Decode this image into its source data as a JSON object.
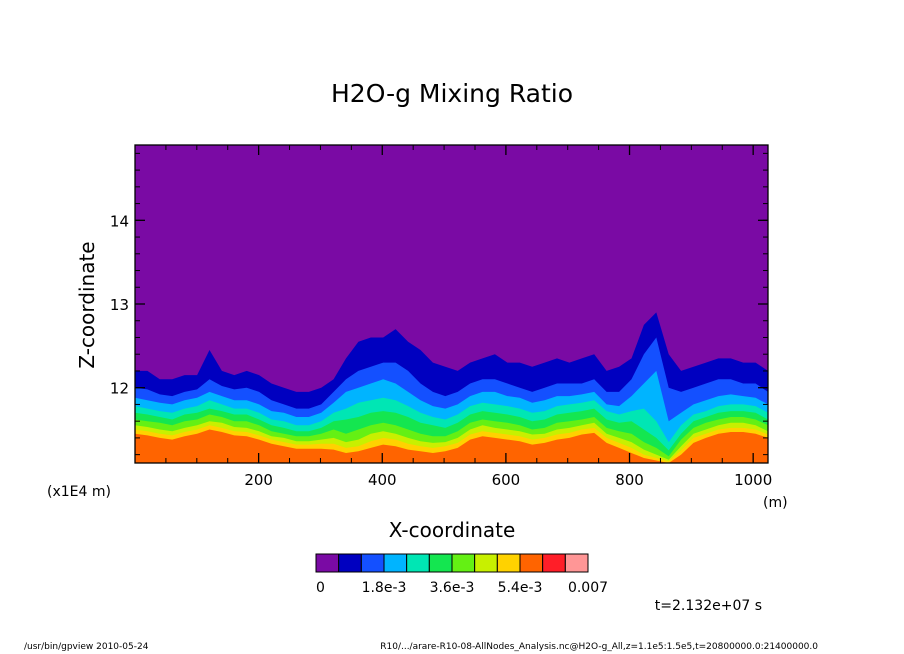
{
  "chart_data": {
    "type": "heatmap",
    "title": "H2O-g Mixing Ratio",
    "xlabel": "X-coordinate",
    "ylabel": "Z-coordinate",
    "x_unit": "(m)",
    "y_unit": "(x1E4 m)",
    "xlim": [
      0,
      1024
    ],
    "ylim": [
      11.1,
      14.9
    ],
    "x_ticks": [
      200,
      400,
      600,
      800,
      1000
    ],
    "y_ticks": [
      12,
      13,
      14
    ],
    "colorbar": {
      "colors": [
        "#7a0aa4",
        "#0000c0",
        "#1450ff",
        "#00b4ff",
        "#00e6b4",
        "#14e650",
        "#64f014",
        "#c8f000",
        "#ffd200",
        "#ff6400",
        "#ff1e28",
        "#ff9696"
      ],
      "tick_labels": [
        "0",
        "1.8e-3",
        "3.6e-3",
        "5.4e-3",
        "0.007"
      ]
    },
    "bands": [
      {
        "level": 0,
        "color": "#0000c0",
        "top": [
          12.2,
          12.2,
          12.1,
          12.1,
          12.15,
          12.15,
          12.45,
          12.2,
          12.15,
          12.2,
          12.15,
          12.05,
          12.0,
          11.95,
          11.95,
          12.0,
          12.1,
          12.35,
          12.55,
          12.6,
          12.6,
          12.7,
          12.55,
          12.45,
          12.3,
          12.25,
          12.2,
          12.3,
          12.35,
          12.4,
          12.3,
          12.3,
          12.25,
          12.3,
          12.35,
          12.3,
          12.35,
          12.4,
          12.2,
          12.25,
          12.35,
          12.75,
          12.9,
          12.4,
          12.2,
          12.25,
          12.3,
          12.35,
          12.35,
          12.3,
          12.3,
          12.2
        ]
      },
      {
        "level": 1,
        "color": "#1450ff",
        "top": [
          12.0,
          11.98,
          11.92,
          11.9,
          11.95,
          11.98,
          12.1,
          12.02,
          11.98,
          12.0,
          11.95,
          11.85,
          11.8,
          11.75,
          11.75,
          11.8,
          11.95,
          12.1,
          12.2,
          12.25,
          12.3,
          12.3,
          12.2,
          12.05,
          11.95,
          11.9,
          11.95,
          12.05,
          12.1,
          12.1,
          12.05,
          12.0,
          11.95,
          12.0,
          12.05,
          12.05,
          12.05,
          12.1,
          11.95,
          11.95,
          12.1,
          12.4,
          12.6,
          12.0,
          11.95,
          12.0,
          12.05,
          12.1,
          12.1,
          12.05,
          12.05,
          11.95
        ]
      },
      {
        "level": 2,
        "color": "#00b4ff",
        "top": [
          11.88,
          11.85,
          11.82,
          11.8,
          11.85,
          11.88,
          11.95,
          11.9,
          11.85,
          11.85,
          11.8,
          11.72,
          11.7,
          11.65,
          11.65,
          11.7,
          11.82,
          11.95,
          12.0,
          12.05,
          12.1,
          12.05,
          11.95,
          11.85,
          11.78,
          11.75,
          11.8,
          11.9,
          11.95,
          11.95,
          11.9,
          11.88,
          11.82,
          11.85,
          11.9,
          11.9,
          11.92,
          11.95,
          11.8,
          11.78,
          11.9,
          12.05,
          12.2,
          11.6,
          11.7,
          11.8,
          11.85,
          11.9,
          11.92,
          11.9,
          11.88,
          11.8
        ]
      },
      {
        "level": 3,
        "color": "#00e6b4",
        "top": [
          11.78,
          11.75,
          11.72,
          11.7,
          11.75,
          11.78,
          11.85,
          11.8,
          11.75,
          11.75,
          11.7,
          11.62,
          11.6,
          11.55,
          11.55,
          11.6,
          11.7,
          11.75,
          11.82,
          11.85,
          11.88,
          11.85,
          11.78,
          11.7,
          11.65,
          11.62,
          11.68,
          11.78,
          11.82,
          11.8,
          11.78,
          11.75,
          11.7,
          11.72,
          11.78,
          11.8,
          11.82,
          11.85,
          11.72,
          11.68,
          11.72,
          11.75,
          11.6,
          11.35,
          11.55,
          11.68,
          11.72,
          11.78,
          11.8,
          11.8,
          11.78,
          11.7
        ]
      },
      {
        "level": 4,
        "color": "#14e650",
        "top": [
          11.7,
          11.68,
          11.65,
          11.62,
          11.68,
          11.7,
          11.75,
          11.72,
          11.68,
          11.68,
          11.62,
          11.55,
          11.52,
          11.48,
          11.48,
          11.52,
          11.6,
          11.62,
          11.65,
          11.7,
          11.72,
          11.7,
          11.65,
          11.58,
          11.55,
          11.52,
          11.58,
          11.68,
          11.72,
          11.7,
          11.68,
          11.65,
          11.6,
          11.62,
          11.68,
          11.7,
          11.72,
          11.75,
          11.62,
          11.58,
          11.6,
          11.5,
          11.4,
          11.25,
          11.45,
          11.6,
          11.65,
          11.7,
          11.72,
          11.72,
          11.7,
          11.62
        ]
      },
      {
        "level": 5,
        "color": "#64f014",
        "top": [
          11.62,
          11.6,
          11.58,
          11.55,
          11.6,
          11.62,
          11.68,
          11.65,
          11.6,
          11.6,
          11.55,
          11.48,
          11.45,
          11.42,
          11.42,
          11.45,
          11.5,
          11.45,
          11.5,
          11.55,
          11.58,
          11.55,
          11.5,
          11.45,
          11.42,
          11.42,
          11.48,
          11.58,
          11.62,
          11.6,
          11.58,
          11.55,
          11.5,
          11.52,
          11.58,
          11.6,
          11.62,
          11.65,
          11.52,
          11.48,
          11.45,
          11.35,
          11.28,
          11.18,
          11.38,
          11.52,
          11.58,
          11.62,
          11.65,
          11.65,
          11.62,
          11.55
        ]
      },
      {
        "level": 6,
        "color": "#c8f000",
        "top": [
          11.55,
          11.53,
          11.5,
          11.48,
          11.52,
          11.55,
          11.6,
          11.58,
          11.53,
          11.52,
          11.48,
          11.42,
          11.4,
          11.36,
          11.36,
          11.38,
          11.4,
          11.35,
          11.38,
          11.45,
          11.48,
          11.45,
          11.4,
          11.36,
          11.34,
          11.35,
          11.4,
          11.5,
          11.55,
          11.52,
          11.5,
          11.48,
          11.44,
          11.45,
          11.5,
          11.52,
          11.55,
          11.58,
          11.45,
          11.4,
          11.35,
          11.26,
          11.2,
          11.14,
          11.3,
          11.45,
          11.5,
          11.55,
          11.58,
          11.58,
          11.55,
          11.48
        ]
      },
      {
        "level": 7,
        "color": "#ffd200",
        "top": [
          11.5,
          11.48,
          11.45,
          11.43,
          11.47,
          11.5,
          11.55,
          11.52,
          11.48,
          11.47,
          11.43,
          11.38,
          11.35,
          11.32,
          11.32,
          11.33,
          11.33,
          11.28,
          11.3,
          11.36,
          11.4,
          11.38,
          11.33,
          11.3,
          11.28,
          11.3,
          11.34,
          11.44,
          11.48,
          11.46,
          11.44,
          11.42,
          11.38,
          11.4,
          11.44,
          11.46,
          11.5,
          11.52,
          11.4,
          11.34,
          11.28,
          11.2,
          11.16,
          11.12,
          11.25,
          11.4,
          11.45,
          11.5,
          11.52,
          11.52,
          11.5,
          11.44
        ]
      },
      {
        "level": 8,
        "color": "#ff6400",
        "top": [
          11.45,
          11.43,
          11.4,
          11.38,
          11.42,
          11.45,
          11.5,
          11.47,
          11.43,
          11.42,
          11.38,
          11.33,
          11.3,
          11.27,
          11.27,
          11.27,
          11.26,
          11.22,
          11.24,
          11.28,
          11.32,
          11.3,
          11.26,
          11.24,
          11.22,
          11.24,
          11.28,
          11.38,
          11.42,
          11.4,
          11.38,
          11.36,
          11.32,
          11.34,
          11.38,
          11.4,
          11.44,
          11.46,
          11.34,
          11.28,
          11.22,
          11.16,
          11.13,
          11.1,
          11.2,
          11.34,
          11.4,
          11.45,
          11.47,
          11.47,
          11.45,
          11.4
        ]
      }
    ]
  },
  "time_label": "t=2.132e+07 s",
  "footer": {
    "left": "/usr/bin/gpview  2010-05-24",
    "right": "R10/.../arare-R10-08-AllNodes_Analysis.nc@H2O-g_All,z=1.1e5:1.5e5,t=20800000.0:21400000.0"
  }
}
